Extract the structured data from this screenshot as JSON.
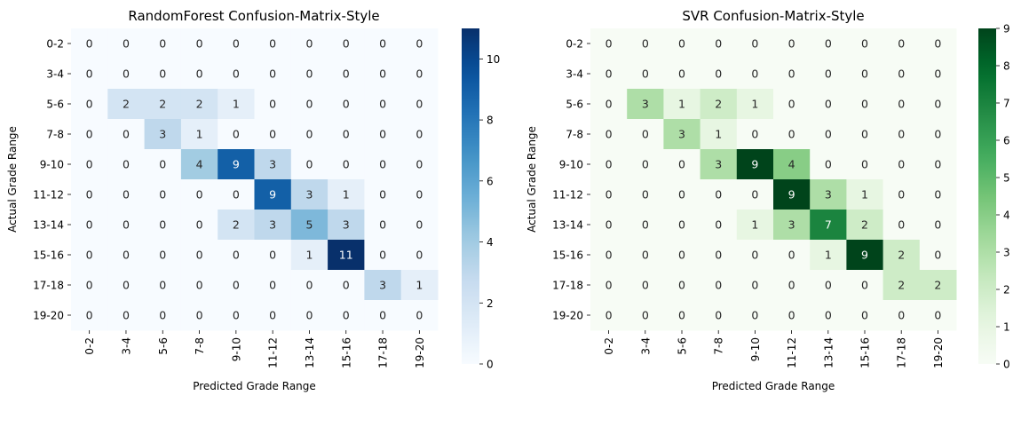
{
  "chart_data": [
    {
      "type": "heatmap",
      "title": "RandomForest Confusion-Matrix-Style",
      "xlabel": "Predicted Grade Range",
      "ylabel": "Actual Grade Range",
      "x_categories": [
        "0-2",
        "3-4",
        "5-6",
        "7-8",
        "9-10",
        "11-12",
        "13-14",
        "15-16",
        "17-18",
        "19-20"
      ],
      "y_categories": [
        "0-2",
        "3-4",
        "5-6",
        "7-8",
        "9-10",
        "11-12",
        "13-14",
        "15-16",
        "17-18",
        "19-20"
      ],
      "values": [
        [
          0,
          0,
          0,
          0,
          0,
          0,
          0,
          0,
          0,
          0
        ],
        [
          0,
          0,
          0,
          0,
          0,
          0,
          0,
          0,
          0,
          0
        ],
        [
          0,
          2,
          2,
          2,
          1,
          0,
          0,
          0,
          0,
          0
        ],
        [
          0,
          0,
          3,
          1,
          0,
          0,
          0,
          0,
          0,
          0
        ],
        [
          0,
          0,
          0,
          4,
          9,
          3,
          0,
          0,
          0,
          0
        ],
        [
          0,
          0,
          0,
          0,
          0,
          9,
          3,
          1,
          0,
          0
        ],
        [
          0,
          0,
          0,
          0,
          2,
          3,
          5,
          3,
          0,
          0
        ],
        [
          0,
          0,
          0,
          0,
          0,
          0,
          1,
          11,
          0,
          0
        ],
        [
          0,
          0,
          0,
          0,
          0,
          0,
          0,
          0,
          3,
          1
        ],
        [
          0,
          0,
          0,
          0,
          0,
          0,
          0,
          0,
          0,
          0
        ]
      ],
      "colormap": "Blues",
      "color_low": "#f7fbff",
      "color_high": "#08306b",
      "vmin": 0,
      "vmax": 11,
      "colorbar_ticks": [
        "0",
        "2",
        "4",
        "6",
        "8",
        "10"
      ]
    },
    {
      "type": "heatmap",
      "title": "SVR Confusion-Matrix-Style",
      "xlabel": "Predicted Grade Range",
      "ylabel": "Actual Grade Range",
      "x_categories": [
        "0-2",
        "3-4",
        "5-6",
        "7-8",
        "9-10",
        "11-12",
        "13-14",
        "15-16",
        "17-18",
        "19-20"
      ],
      "y_categories": [
        "0-2",
        "3-4",
        "5-6",
        "7-8",
        "9-10",
        "11-12",
        "13-14",
        "15-16",
        "17-18",
        "19-20"
      ],
      "values": [
        [
          0,
          0,
          0,
          0,
          0,
          0,
          0,
          0,
          0,
          0
        ],
        [
          0,
          0,
          0,
          0,
          0,
          0,
          0,
          0,
          0,
          0
        ],
        [
          0,
          3,
          1,
          2,
          1,
          0,
          0,
          0,
          0,
          0
        ],
        [
          0,
          0,
          3,
          1,
          0,
          0,
          0,
          0,
          0,
          0
        ],
        [
          0,
          0,
          0,
          3,
          9,
          4,
          0,
          0,
          0,
          0
        ],
        [
          0,
          0,
          0,
          0,
          0,
          9,
          3,
          1,
          0,
          0
        ],
        [
          0,
          0,
          0,
          0,
          1,
          3,
          7,
          2,
          0,
          0
        ],
        [
          0,
          0,
          0,
          0,
          0,
          0,
          1,
          9,
          2,
          0
        ],
        [
          0,
          0,
          0,
          0,
          0,
          0,
          0,
          0,
          2,
          2
        ],
        [
          0,
          0,
          0,
          0,
          0,
          0,
          0,
          0,
          0,
          0
        ]
      ],
      "colormap": "Greens",
      "color_low": "#f7fcf5",
      "color_high": "#00441b",
      "vmin": 0,
      "vmax": 9,
      "colorbar_ticks": [
        "0",
        "1",
        "2",
        "3",
        "4",
        "5",
        "6",
        "7",
        "8",
        "9"
      ]
    }
  ]
}
